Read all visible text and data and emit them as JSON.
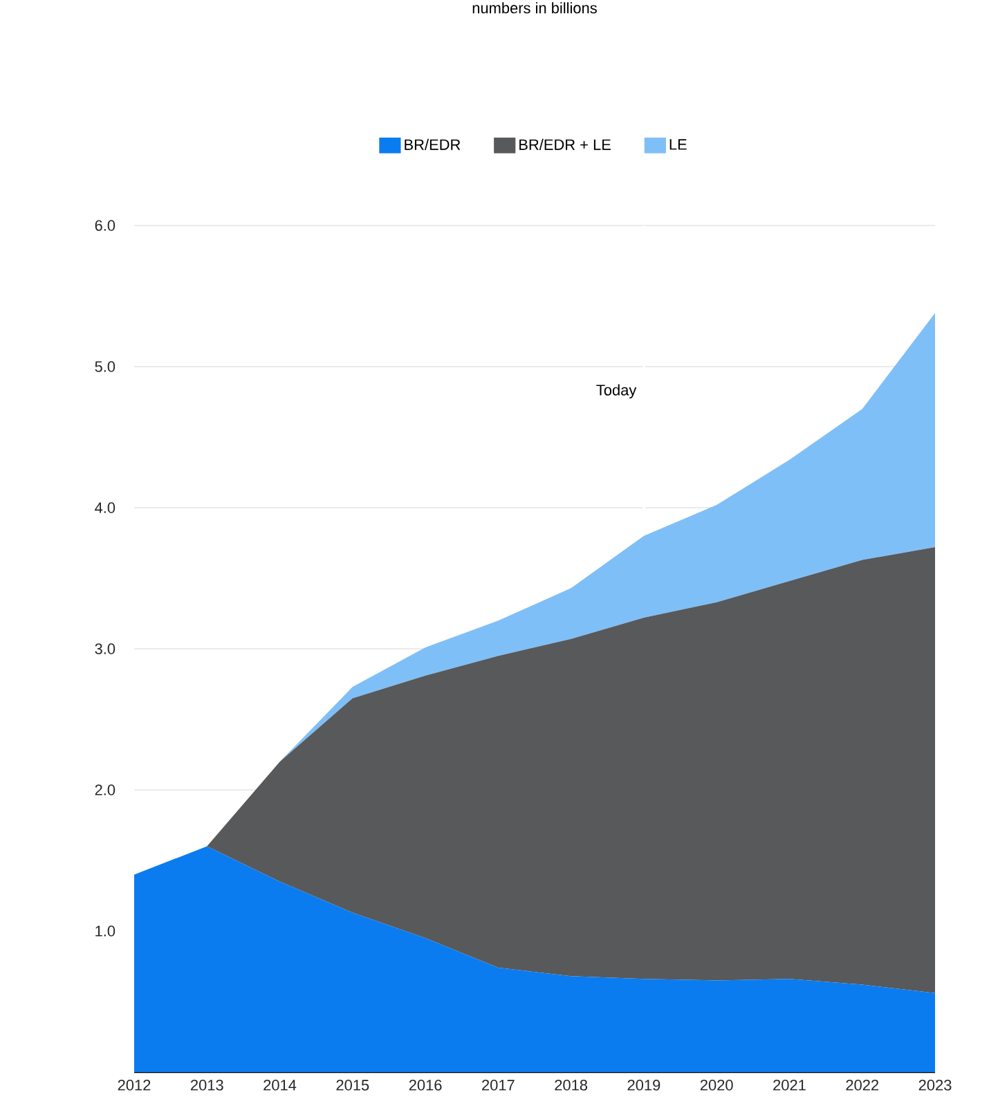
{
  "chart_data": {
    "type": "area",
    "title": "numbers in billions",
    "stacked": true,
    "x": [
      2012,
      2013,
      2014,
      2015,
      2016,
      2017,
      2018,
      2019,
      2020,
      2021,
      2022,
      2023
    ],
    "series": [
      {
        "name": "BR/EDR",
        "color": "#0a7cf0",
        "values": [
          1.4,
          1.6,
          1.35,
          1.13,
          0.95,
          0.74,
          0.68,
          0.66,
          0.65,
          0.66,
          0.62,
          0.56
        ]
      },
      {
        "name": "BR/EDR + LE",
        "color": "#58595b",
        "values": [
          0,
          0,
          0.85,
          1.52,
          1.86,
          2.21,
          2.39,
          2.56,
          2.68,
          2.82,
          3.01,
          3.16
        ]
      },
      {
        "name": "LE",
        "color": "#7fbff7",
        "values": [
          0,
          0,
          0,
          0.08,
          0.2,
          0.25,
          0.36,
          0.58,
          0.69,
          0.86,
          1.07,
          1.66
        ]
      }
    ],
    "xlim": [
      2012,
      2023
    ],
    "xticks": [
      2012,
      2013,
      2014,
      2015,
      2016,
      2017,
      2018,
      2019,
      2020,
      2021,
      2022,
      2023
    ],
    "ylim": [
      0,
      6
    ],
    "yticks": [
      {
        "value": 1,
        "label": "1.0"
      },
      {
        "value": 2,
        "label": "2.0"
      },
      {
        "value": 3,
        "label": "3.0"
      },
      {
        "value": 4,
        "label": "4.0"
      },
      {
        "value": 5,
        "label": "5.0"
      },
      {
        "value": 6,
        "label": "6.0"
      }
    ],
    "ref_lines": [
      {
        "axis": "x",
        "value": 2019,
        "label": "Today",
        "color": "#ffffff"
      }
    ],
    "grid": "y",
    "legend": "top"
  }
}
